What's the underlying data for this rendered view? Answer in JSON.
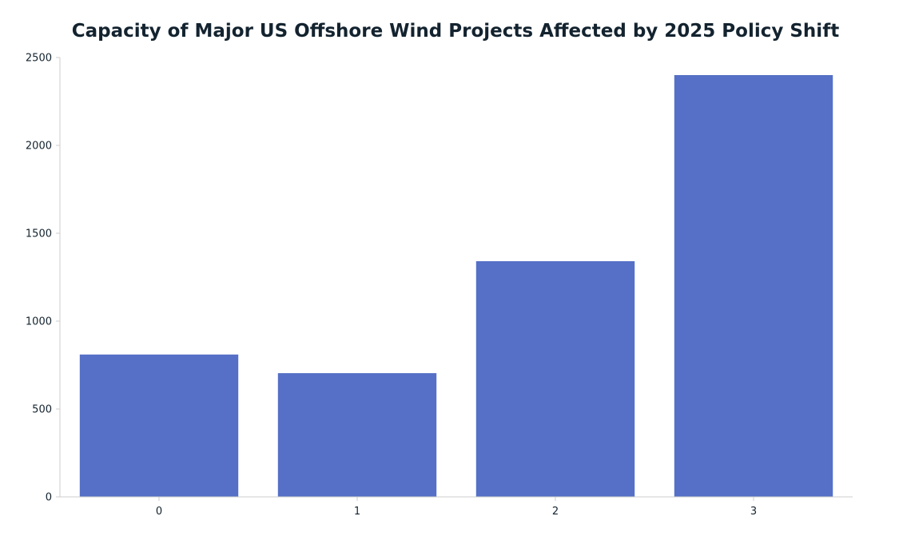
{
  "chart_data": {
    "type": "bar",
    "title": "Capacity of Major US Offshore Wind Projects Affected by 2025 Policy Shift",
    "xlabel": "",
    "ylabel": "",
    "categories": [
      "0",
      "1",
      "2",
      "3"
    ],
    "values": [
      810,
      704,
      1341,
      2400
    ],
    "ylim": [
      0,
      2500
    ],
    "yticks": [
      0,
      500,
      1000,
      1500,
      2000,
      2500
    ],
    "grid": false,
    "legend": "none",
    "bar_color": "#5570c6",
    "axis_color": "#cccccc",
    "text_color": "#13232f"
  }
}
